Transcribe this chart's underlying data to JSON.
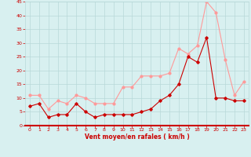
{
  "x": [
    0,
    1,
    2,
    3,
    4,
    5,
    6,
    7,
    8,
    9,
    10,
    11,
    12,
    13,
    14,
    15,
    16,
    17,
    18,
    19,
    20,
    21,
    22,
    23
  ],
  "wind_avg": [
    7,
    8,
    3,
    4,
    4,
    8,
    5,
    3,
    4,
    4,
    4,
    4,
    5,
    6,
    9,
    11,
    15,
    25,
    23,
    32,
    10,
    10,
    9,
    9
  ],
  "wind_gust": [
    11,
    11,
    6,
    9,
    8,
    11,
    10,
    8,
    8,
    8,
    14,
    14,
    18,
    18,
    18,
    19,
    28,
    26,
    29,
    45,
    41,
    24,
    11,
    16
  ],
  "bg_color": "#d8f0f0",
  "grid_color": "#b8d8d8",
  "avg_color": "#cc0000",
  "gust_color": "#ff9999",
  "xlabel": "Vent moyen/en rafales ( km/h )",
  "xlabel_color": "#cc0000",
  "tick_color": "#cc0000",
  "ylim": [
    0,
    45
  ],
  "yticks": [
    0,
    5,
    10,
    15,
    20,
    25,
    30,
    35,
    40,
    45
  ],
  "xticks": [
    0,
    1,
    2,
    3,
    4,
    5,
    6,
    7,
    8,
    9,
    10,
    11,
    12,
    13,
    14,
    15,
    16,
    17,
    18,
    19,
    20,
    21,
    22,
    23
  ]
}
